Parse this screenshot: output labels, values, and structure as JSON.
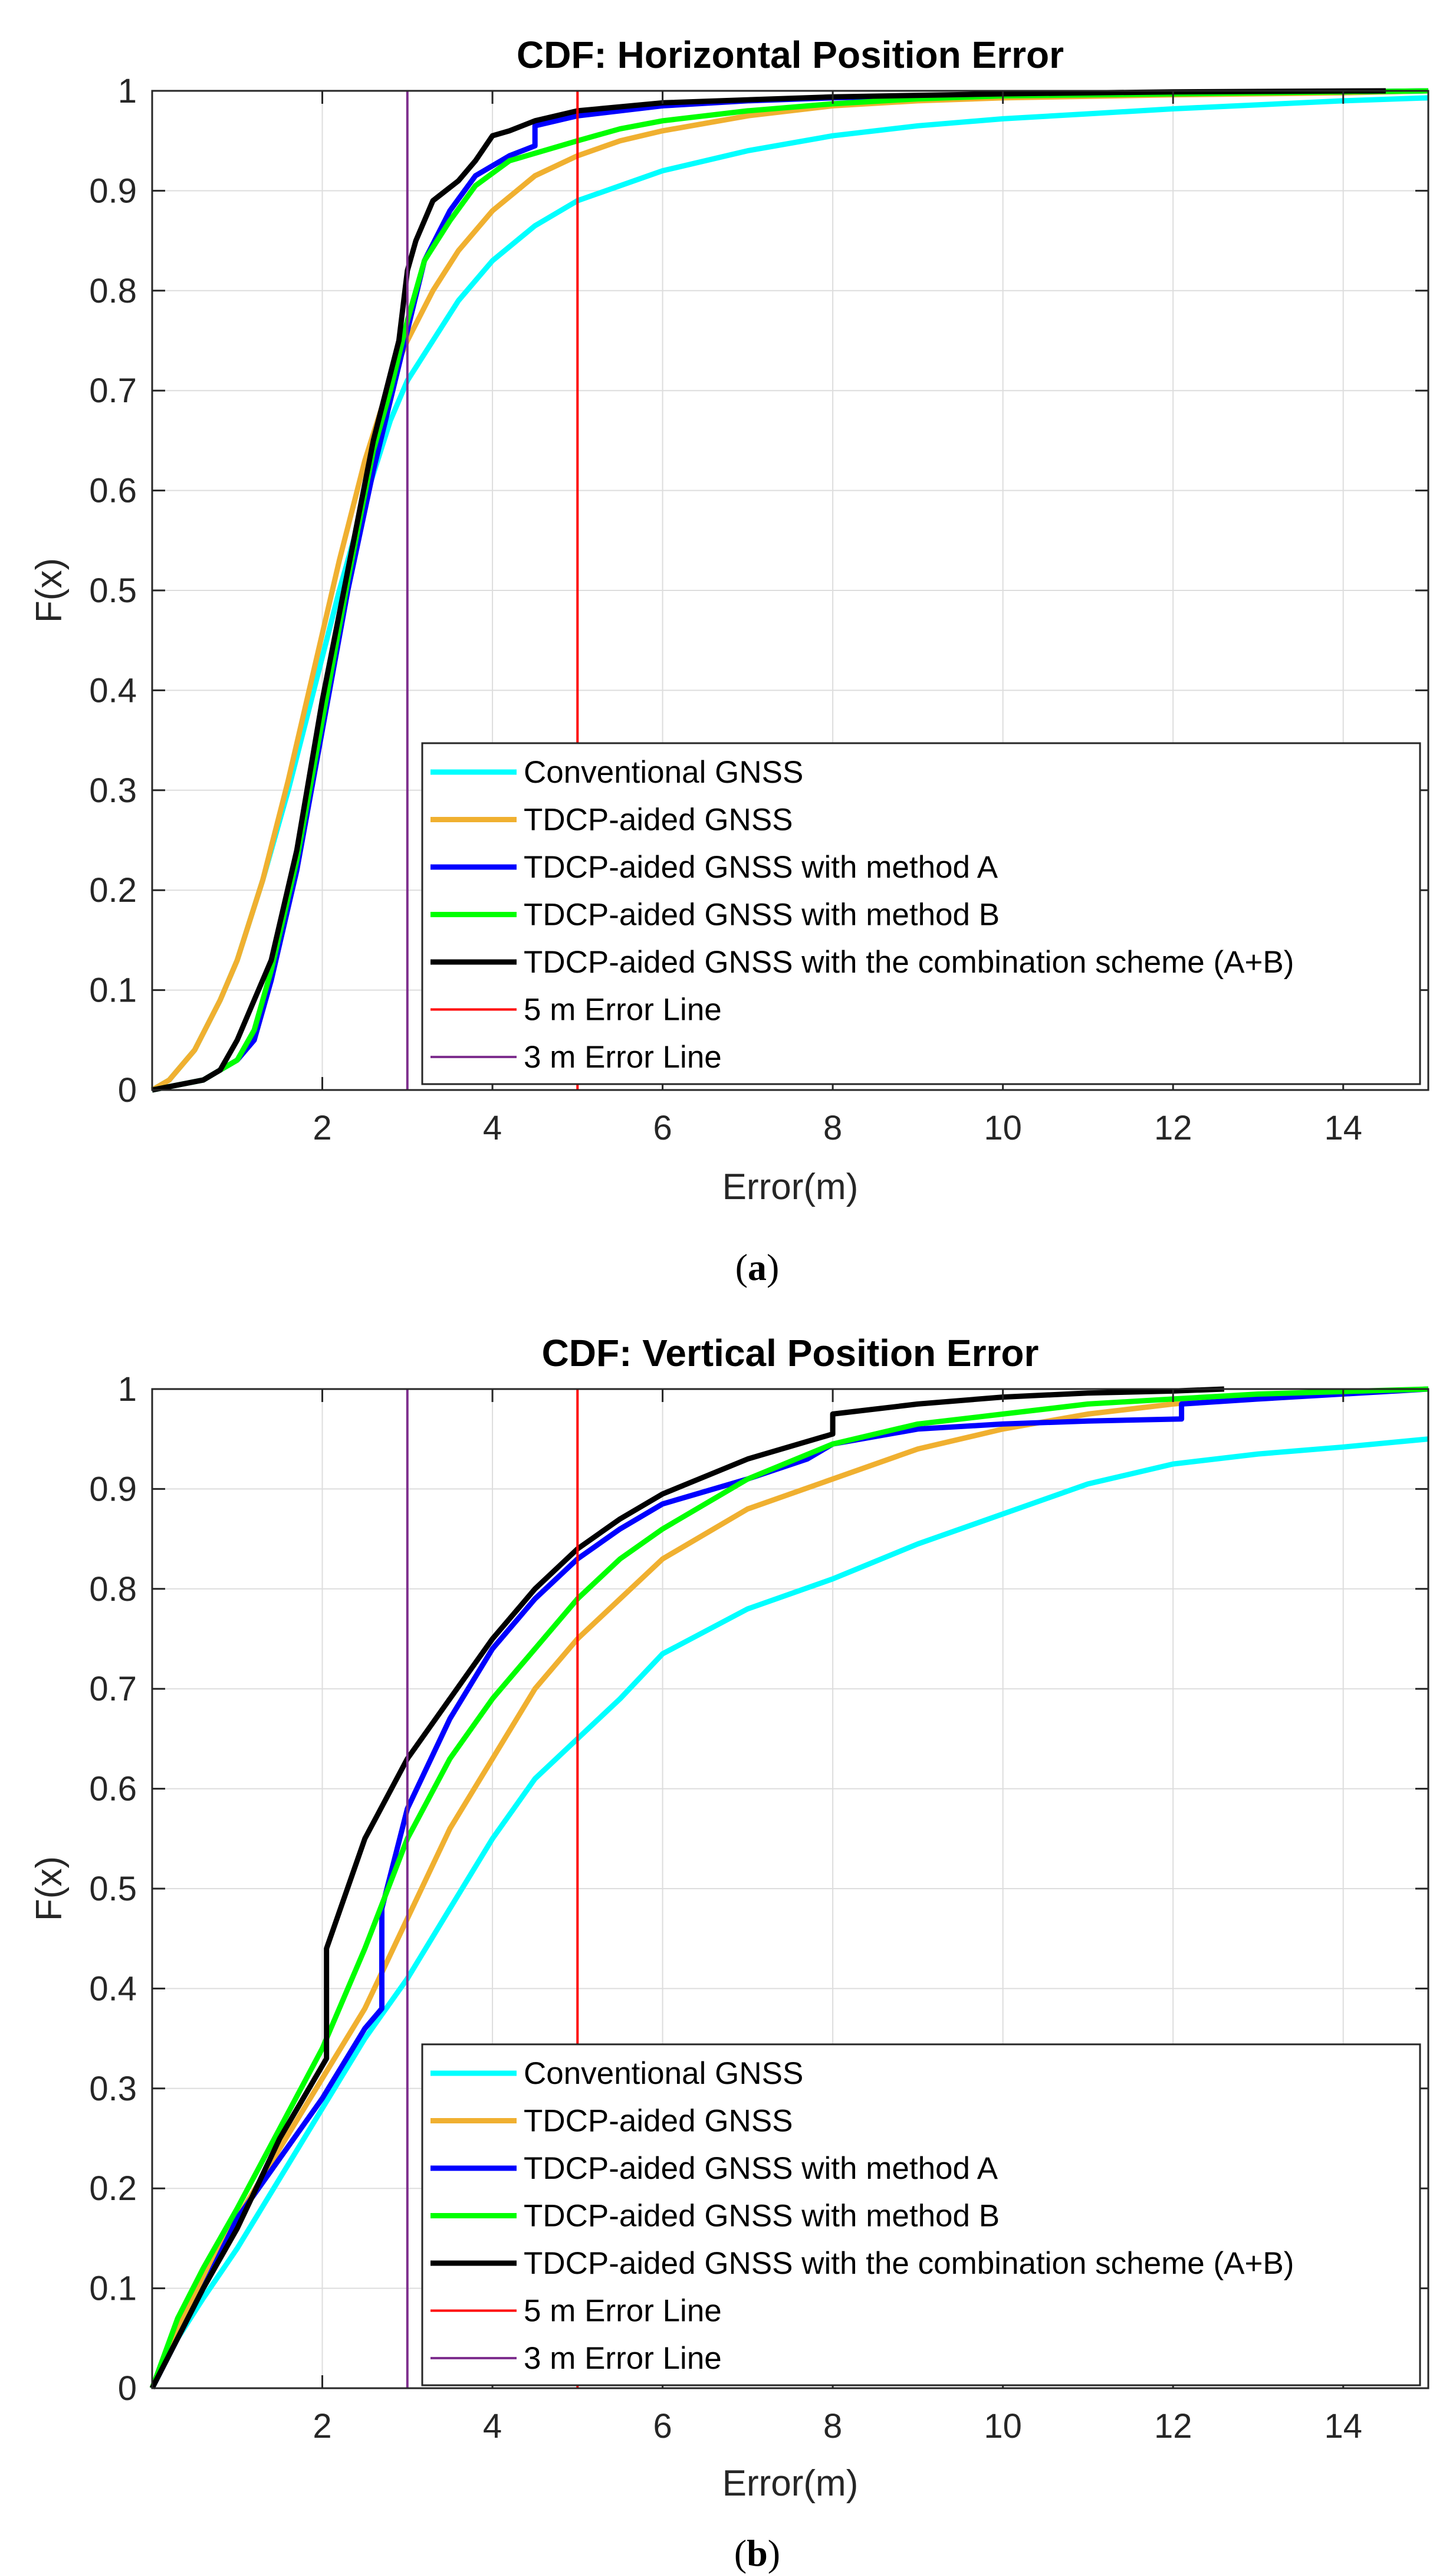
{
  "chart_data": [
    {
      "type": "line",
      "id": "a",
      "title": "CDF: Horizontal Position Error",
      "xlabel": "Error(m)",
      "ylabel": "F(x)",
      "xlim": [
        0,
        15
      ],
      "ylim": [
        0,
        1
      ],
      "xticks": [
        2,
        4,
        6,
        8,
        10,
        12,
        14
      ],
      "yticks": [
        0,
        0.1,
        0.2,
        0.3,
        0.4,
        0.5,
        0.6,
        0.7,
        0.8,
        0.9,
        1
      ],
      "grid": true,
      "legend_position": "bottom-right",
      "caption_open": "(",
      "caption_letter": "a",
      "caption_close": ")",
      "series": [
        {
          "name": "Conventional GNSS",
          "color": "#00FFFF",
          "x": [
            0,
            0.2,
            0.5,
            0.8,
            1.0,
            1.3,
            1.6,
            1.9,
            2.2,
            2.5,
            2.8,
            3.0,
            3.3,
            3.6,
            4.0,
            4.5,
            5.0,
            5.5,
            6.0,
            7.0,
            8.0,
            9.0,
            10.0,
            11.0,
            12.0,
            13.0,
            14.0,
            15.0
          ],
          "values": [
            0,
            0.01,
            0.04,
            0.09,
            0.13,
            0.21,
            0.3,
            0.4,
            0.5,
            0.59,
            0.67,
            0.71,
            0.75,
            0.79,
            0.83,
            0.865,
            0.89,
            0.905,
            0.92,
            0.94,
            0.955,
            0.965,
            0.972,
            0.977,
            0.982,
            0.986,
            0.99,
            0.993
          ]
        },
        {
          "name": "TDCP-aided GNSS",
          "color": "#F0B030",
          "x": [
            0,
            0.2,
            0.5,
            0.8,
            1.0,
            1.3,
            1.6,
            1.9,
            2.2,
            2.5,
            2.8,
            3.0,
            3.3,
            3.6,
            4.0,
            4.5,
            5.0,
            5.5,
            6.0,
            7.0,
            8.0,
            9.0,
            10.0,
            12.0,
            14.0,
            15.0
          ],
          "values": [
            0,
            0.01,
            0.04,
            0.09,
            0.13,
            0.21,
            0.31,
            0.42,
            0.53,
            0.63,
            0.71,
            0.75,
            0.8,
            0.84,
            0.88,
            0.915,
            0.935,
            0.95,
            0.96,
            0.975,
            0.985,
            0.99,
            0.993,
            0.996,
            0.998,
            1.0
          ]
        },
        {
          "name": "TDCP-aided GNSS with method A",
          "color": "#0000FF",
          "x": [
            0,
            0.6,
            0.8,
            1.0,
            1.2,
            1.4,
            1.7,
            2.0,
            2.3,
            2.6,
            2.8,
            3.0,
            3.2,
            3.5,
            3.8,
            4.2,
            4.5,
            4.5,
            5.0,
            5.5,
            6.0,
            7.0,
            8.0,
            9.0,
            10.0,
            12.0,
            14.0,
            15.0
          ],
          "values": [
            0,
            0.01,
            0.02,
            0.03,
            0.05,
            0.11,
            0.22,
            0.36,
            0.5,
            0.62,
            0.69,
            0.76,
            0.83,
            0.88,
            0.915,
            0.935,
            0.945,
            0.965,
            0.975,
            0.98,
            0.985,
            0.99,
            0.993,
            0.995,
            0.997,
            0.998,
            0.999,
            1.0
          ]
        },
        {
          "name": "TDCP-aided GNSS with method B",
          "color": "#00FF00",
          "x": [
            0,
            0.6,
            0.8,
            1.0,
            1.2,
            1.4,
            1.7,
            2.0,
            2.3,
            2.6,
            2.8,
            3.0,
            3.2,
            3.5,
            3.8,
            4.2,
            5.0,
            5.5,
            6.0,
            7.0,
            8.0,
            9.0,
            10.0,
            12.0,
            14.0,
            15.0
          ],
          "values": [
            0,
            0.01,
            0.02,
            0.03,
            0.06,
            0.12,
            0.23,
            0.37,
            0.51,
            0.64,
            0.7,
            0.77,
            0.83,
            0.87,
            0.905,
            0.93,
            0.95,
            0.962,
            0.97,
            0.98,
            0.987,
            0.992,
            0.995,
            0.997,
            0.999,
            1.0
          ]
        },
        {
          "name": "TDCP-aided GNSS with the combination scheme (A+B)",
          "color": "#000000",
          "x": [
            0,
            0.6,
            0.8,
            1.0,
            1.2,
            1.4,
            1.7,
            2.0,
            2.3,
            2.6,
            2.9,
            3.0,
            3.1,
            3.3,
            3.6,
            3.8,
            4.0,
            4.2,
            4.5,
            5.0,
            6.0,
            8.0,
            10.0,
            12.0,
            14.5
          ],
          "values": [
            0,
            0.01,
            0.02,
            0.05,
            0.09,
            0.13,
            0.24,
            0.39,
            0.52,
            0.65,
            0.75,
            0.82,
            0.85,
            0.89,
            0.91,
            0.93,
            0.955,
            0.96,
            0.97,
            0.98,
            0.988,
            0.994,
            0.997,
            0.999,
            1.0
          ]
        },
        {
          "name": "5 m Error Line",
          "color": "#FF0000",
          "x": [
            5,
            5
          ],
          "values": [
            0,
            1
          ]
        },
        {
          "name": "3 m Error Line",
          "color": "#7E2F8E",
          "x": [
            3,
            3
          ],
          "values": [
            0,
            1
          ]
        }
      ]
    },
    {
      "type": "line",
      "id": "b",
      "title": "CDF: Vertical Position Error",
      "xlabel": "Error(m)",
      "ylabel": "F(x)",
      "xlim": [
        0,
        15
      ],
      "ylim": [
        0,
        1
      ],
      "xticks": [
        2,
        4,
        6,
        8,
        10,
        12,
        14
      ],
      "yticks": [
        0,
        0.1,
        0.2,
        0.3,
        0.4,
        0.5,
        0.6,
        0.7,
        0.8,
        0.9,
        1
      ],
      "grid": true,
      "legend_position": "bottom-right",
      "caption_open": "(",
      "caption_letter": "b",
      "caption_close": ")",
      "series": [
        {
          "name": "Conventional GNSS",
          "color": "#00FFFF",
          "x": [
            0,
            0.3,
            0.6,
            1.0,
            1.5,
            2.0,
            2.5,
            3.0,
            3.5,
            4.0,
            4.5,
            5.0,
            5.5,
            6.0,
            7.0,
            8.0,
            9.0,
            10.0,
            11.0,
            12.0,
            13.0,
            14.0,
            15.0
          ],
          "values": [
            0,
            0.05,
            0.09,
            0.14,
            0.21,
            0.28,
            0.35,
            0.41,
            0.48,
            0.55,
            0.61,
            0.65,
            0.69,
            0.735,
            0.78,
            0.81,
            0.845,
            0.875,
            0.905,
            0.925,
            0.935,
            0.942,
            0.95
          ]
        },
        {
          "name": "TDCP-aided GNSS",
          "color": "#F0B030",
          "x": [
            0,
            0.3,
            0.6,
            1.0,
            1.5,
            2.0,
            2.5,
            3.0,
            3.5,
            4.0,
            4.5,
            5.0,
            5.5,
            6.0,
            7.0,
            8.0,
            9.0,
            10.0,
            11.0,
            12.0,
            13.0,
            15.0
          ],
          "values": [
            0,
            0.06,
            0.11,
            0.17,
            0.24,
            0.31,
            0.38,
            0.47,
            0.56,
            0.63,
            0.7,
            0.75,
            0.79,
            0.83,
            0.88,
            0.91,
            0.94,
            0.96,
            0.975,
            0.985,
            0.992,
            1.0
          ]
        },
        {
          "name": "TDCP-aided GNSS with method A",
          "color": "#0000FF",
          "x": [
            0,
            0.3,
            0.6,
            1.0,
            1.5,
            2.0,
            2.5,
            2.7,
            2.7,
            3.0,
            3.5,
            4.0,
            4.5,
            5.0,
            5.5,
            6.0,
            7.0,
            7.7,
            8.0,
            9.0,
            10.0,
            11.0,
            12.1,
            12.1,
            13.0,
            15.0
          ],
          "values": [
            0,
            0.05,
            0.1,
            0.17,
            0.23,
            0.29,
            0.36,
            0.38,
            0.48,
            0.58,
            0.67,
            0.74,
            0.79,
            0.83,
            0.86,
            0.885,
            0.91,
            0.93,
            0.945,
            0.96,
            0.965,
            0.968,
            0.97,
            0.985,
            0.99,
            1.0
          ]
        },
        {
          "name": "TDCP-aided GNSS with method B",
          "color": "#00FF00",
          "x": [
            0,
            0.3,
            0.6,
            1.0,
            1.5,
            2.0,
            2.5,
            3.0,
            3.5,
            4.0,
            4.5,
            5.0,
            5.5,
            6.0,
            7.0,
            8.0,
            9.0,
            10.0,
            11.0,
            12.0,
            13.0,
            15.0
          ],
          "values": [
            0,
            0.07,
            0.12,
            0.18,
            0.26,
            0.34,
            0.44,
            0.55,
            0.63,
            0.69,
            0.74,
            0.79,
            0.83,
            0.86,
            0.91,
            0.945,
            0.965,
            0.975,
            0.985,
            0.99,
            0.995,
            1.0
          ]
        },
        {
          "name": "TDCP-aided GNSS with the combination scheme (A+B)",
          "color": "#000000",
          "x": [
            0,
            0.3,
            0.6,
            1.0,
            1.5,
            2.05,
            2.05,
            2.5,
            3.0,
            3.5,
            4.0,
            4.5,
            5.0,
            5.5,
            6.0,
            7.0,
            8.0,
            8.0,
            9.0,
            10.0,
            11.0,
            12.0,
            12.6
          ],
          "values": [
            0,
            0.05,
            0.1,
            0.16,
            0.25,
            0.33,
            0.44,
            0.55,
            0.63,
            0.69,
            0.75,
            0.8,
            0.84,
            0.87,
            0.895,
            0.93,
            0.955,
            0.975,
            0.985,
            0.992,
            0.996,
            0.998,
            1.0
          ]
        },
        {
          "name": "5 m Error Line",
          "color": "#FF0000",
          "x": [
            5,
            5
          ],
          "values": [
            0,
            1
          ]
        },
        {
          "name": "3 m Error Line",
          "color": "#7E2F8E",
          "x": [
            3,
            3
          ],
          "values": [
            0,
            1
          ]
        }
      ]
    }
  ]
}
